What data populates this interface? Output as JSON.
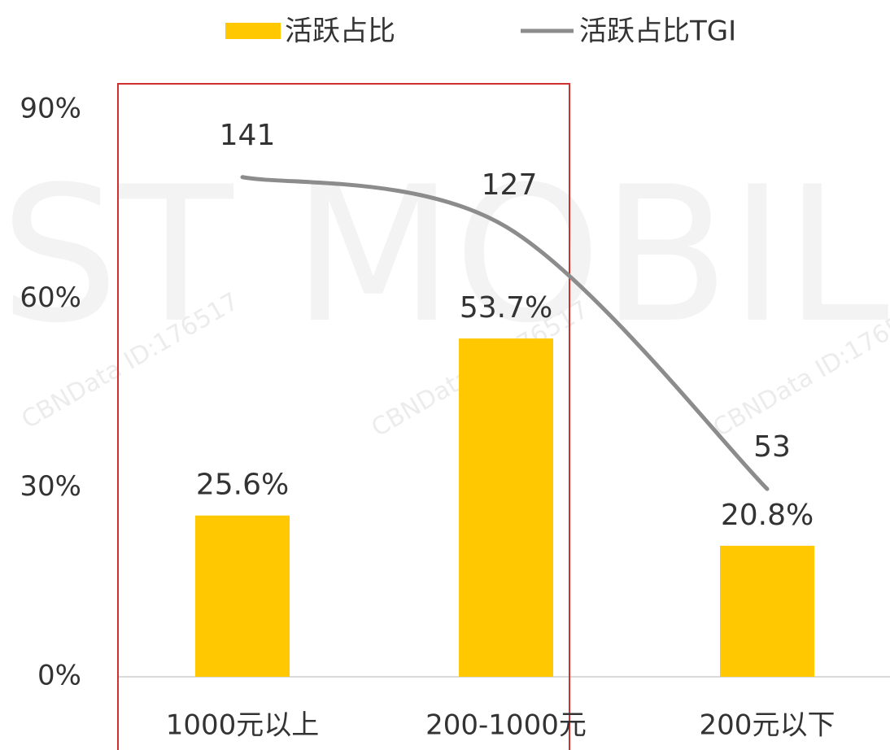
{
  "chart_data": {
    "type": "bar-line",
    "categories": [
      "1000元以上",
      "200-1000元",
      "200元以下"
    ],
    "series": [
      {
        "name": "活跃占比",
        "type": "bar",
        "color": "#ffc800",
        "values": [
          25.6,
          53.7,
          20.8
        ],
        "value_labels": [
          "25.6%",
          "53.7%",
          "20.8%"
        ]
      },
      {
        "name": "活跃占比TGI",
        "type": "line",
        "axis": "y2",
        "color": "#8c8c8c",
        "values": [
          141,
          127,
          53
        ]
      }
    ],
    "ylim": [
      0,
      90
    ],
    "yticks": [
      {
        "value": 0,
        "label": "0%"
      },
      {
        "value": 30,
        "label": "30%"
      },
      {
        "value": 60,
        "label": "60%"
      },
      {
        "value": 90,
        "label": "90%"
      }
    ],
    "y2lim": [
      0,
      160
    ],
    "legend": "top",
    "watermarks": [
      "CBNData ID:176517",
      "ST MOBILE"
    ]
  }
}
